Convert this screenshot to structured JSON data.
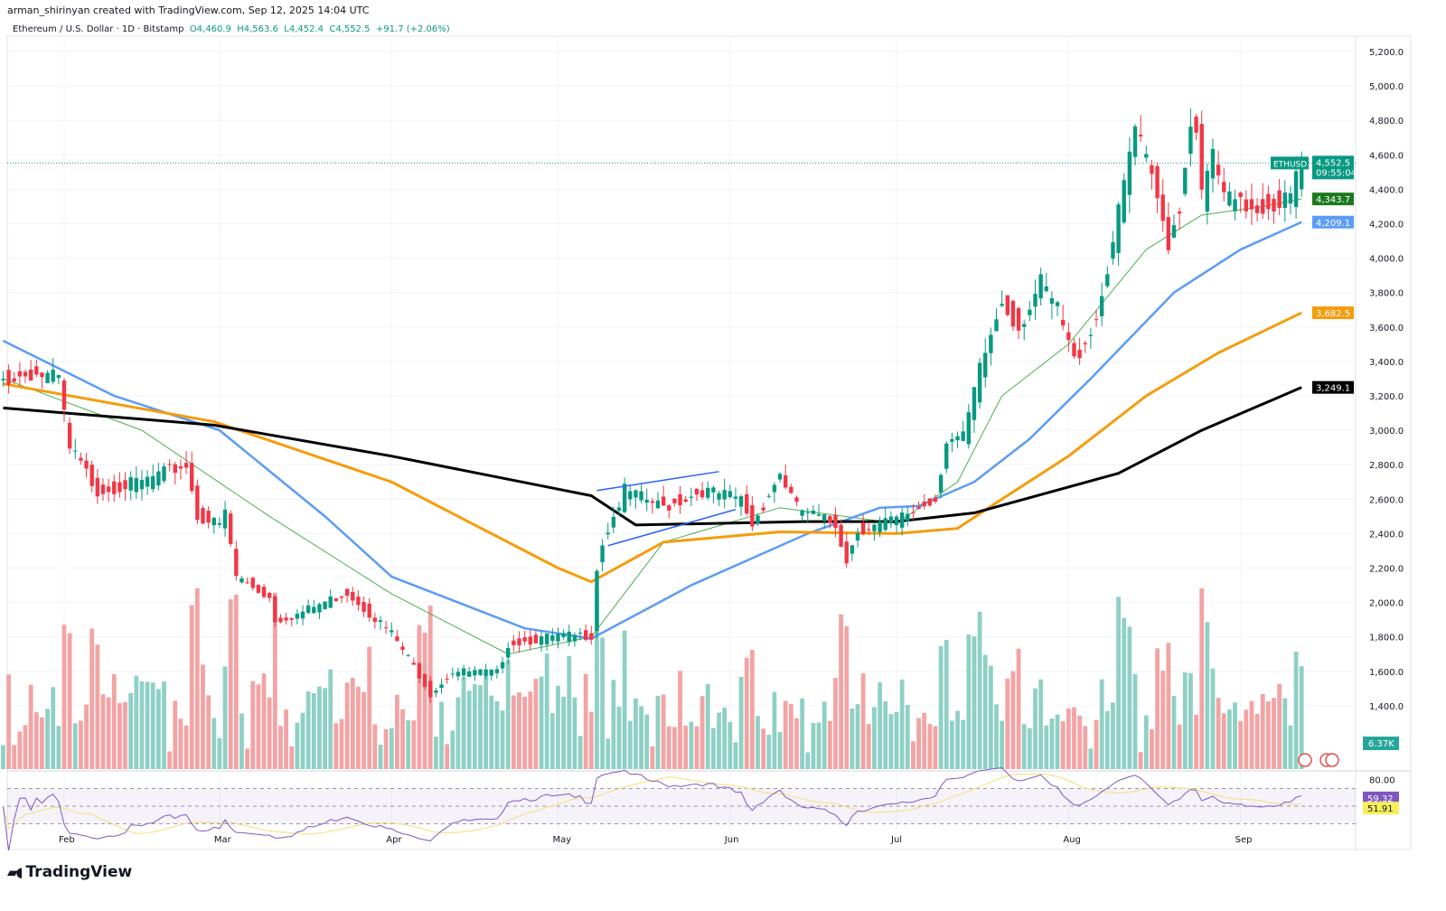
{
  "header": {
    "credit": "arman_shirinyan created with TradingView.com, Sep 12, 2025 14:04 UTC",
    "symbol_title": "Ethereum / U.S. Dollar · 1D · Bitstamp",
    "open": "O4,460.9",
    "high": "H4,563.6",
    "low": "L4,452.4",
    "close": "C4,552.5",
    "change": "+91.7 (+2.06%)"
  },
  "footer": {
    "logo": "TradingView"
  },
  "chart_data": {
    "type": "candlestick",
    "symbol": "ETHUSD",
    "interval": "1D",
    "ylim": [
      1300,
      5300
    ],
    "y_ticks": [
      "5,200.0",
      "5,000.0",
      "4,800.0",
      "4,600.0",
      "4,400.0",
      "4,200.0",
      "4,000.0",
      "3,800.0",
      "3,600.0",
      "3,400.0",
      "3,200.0",
      "3,000.0",
      "2,800.0",
      "2,600.0",
      "2,400.0",
      "2,200.0",
      "2,000.0",
      "1,800.0",
      "1,600.0",
      "1,400.0"
    ],
    "x_ticks": [
      {
        "label": "Feb",
        "date": "2025-02-01"
      },
      {
        "label": "Mar",
        "date": "2025-03-01"
      },
      {
        "label": "Apr",
        "date": "2025-04-01"
      },
      {
        "label": "May",
        "date": "2025-05-01"
      },
      {
        "label": "Jun",
        "date": "2025-06-01"
      },
      {
        "label": "Jul",
        "date": "2025-07-01"
      },
      {
        "label": "Aug",
        "date": "2025-08-01"
      },
      {
        "label": "Sep",
        "date": "2025-09-01"
      }
    ],
    "close_keypoints": [
      [
        "2025-01-21",
        3290
      ],
      [
        "2025-01-26",
        3330
      ],
      [
        "2025-01-31",
        3300
      ],
      [
        "2025-02-02",
        2880
      ],
      [
        "2025-02-03",
        2850
      ],
      [
        "2025-02-07",
        2650
      ],
      [
        "2025-02-15",
        2700
      ],
      [
        "2025-02-23",
        2800
      ],
      [
        "2025-02-25",
        2500
      ],
      [
        "2025-03-01",
        2450
      ],
      [
        "2025-03-02",
        2520
      ],
      [
        "2025-03-04",
        2150
      ],
      [
        "2025-03-10",
        2030
      ],
      [
        "2025-03-11",
        1900
      ],
      [
        "2025-03-15",
        1930
      ],
      [
        "2025-03-24",
        2060
      ],
      [
        "2025-04-01",
        1820
      ],
      [
        "2025-04-06",
        1580
      ],
      [
        "2025-04-08",
        1470
      ],
      [
        "2025-04-12",
        1600
      ],
      [
        "2025-04-20",
        1590
      ],
      [
        "2025-04-22",
        1760
      ],
      [
        "2025-04-30",
        1800
      ],
      [
        "2025-05-07",
        1810
      ],
      [
        "2025-05-08",
        2200
      ],
      [
        "2025-05-09",
        2350
      ],
      [
        "2025-05-13",
        2650
      ],
      [
        "2025-05-20",
        2550
      ],
      [
        "2025-05-27",
        2650
      ],
      [
        "2025-06-03",
        2600
      ],
      [
        "2025-06-05",
        2450
      ],
      [
        "2025-06-10",
        2750
      ],
      [
        "2025-06-13",
        2550
      ],
      [
        "2025-06-20",
        2450
      ],
      [
        "2025-06-22",
        2250
      ],
      [
        "2025-06-24",
        2420
      ],
      [
        "2025-07-01",
        2480
      ],
      [
        "2025-07-08",
        2600
      ],
      [
        "2025-07-10",
        2950
      ],
      [
        "2025-07-13",
        2950
      ],
      [
        "2025-07-16",
        3350
      ],
      [
        "2025-07-20",
        3750
      ],
      [
        "2025-07-23",
        3600
      ],
      [
        "2025-07-27",
        3850
      ],
      [
        "2025-07-30",
        3700
      ],
      [
        "2025-08-02",
        3400
      ],
      [
        "2025-08-06",
        3650
      ],
      [
        "2025-08-08",
        3950
      ],
      [
        "2025-08-10",
        4250
      ],
      [
        "2025-08-12",
        4600
      ],
      [
        "2025-08-13",
        4750
      ],
      [
        "2025-08-16",
        4450
      ],
      [
        "2025-08-19",
        4100
      ],
      [
        "2025-08-21",
        4300
      ],
      [
        "2025-08-23",
        4800
      ],
      [
        "2025-08-24",
        4780
      ],
      [
        "2025-08-25",
        4350
      ],
      [
        "2025-08-27",
        4600
      ],
      [
        "2025-08-29",
        4350
      ],
      [
        "2025-09-01",
        4300
      ],
      [
        "2025-09-05",
        4300
      ],
      [
        "2025-09-10",
        4350
      ],
      [
        "2025-09-11",
        4460
      ],
      [
        "2025-09-12",
        4552.5
      ]
    ],
    "moving_averages": [
      {
        "color": "#4caf50",
        "last": "4,343.7",
        "label_bg": "#1b7a1f",
        "width": 1,
        "points": [
          [
            "2025-01-21",
            3300
          ],
          [
            "2025-02-15",
            3000
          ],
          [
            "2025-03-10",
            2500
          ],
          [
            "2025-04-01",
            2050
          ],
          [
            "2025-04-22",
            1700
          ],
          [
            "2025-05-07",
            1800
          ],
          [
            "2025-05-20",
            2350
          ],
          [
            "2025-06-10",
            2550
          ],
          [
            "2025-07-01",
            2460
          ],
          [
            "2025-07-12",
            2700
          ],
          [
            "2025-07-20",
            3200
          ],
          [
            "2025-08-01",
            3500
          ],
          [
            "2025-08-15",
            4050
          ],
          [
            "2025-08-25",
            4250
          ],
          [
            "2025-09-05",
            4300
          ],
          [
            "2025-09-12",
            4343.7
          ]
        ]
      },
      {
        "color": "#5b9cf6",
        "last": "4,209.1",
        "label_bg": "#5b9cf6",
        "width": 2.5,
        "points": [
          [
            "2025-01-21",
            3520
          ],
          [
            "2025-02-10",
            3200
          ],
          [
            "2025-03-01",
            3000
          ],
          [
            "2025-03-20",
            2500
          ],
          [
            "2025-04-01",
            2150
          ],
          [
            "2025-04-25",
            1850
          ],
          [
            "2025-05-07",
            1790
          ],
          [
            "2025-05-25",
            2100
          ],
          [
            "2025-06-15",
            2400
          ],
          [
            "2025-06-28",
            2550
          ],
          [
            "2025-07-05",
            2560
          ],
          [
            "2025-07-15",
            2700
          ],
          [
            "2025-07-25",
            2950
          ],
          [
            "2025-08-05",
            3300
          ],
          [
            "2025-08-20",
            3800
          ],
          [
            "2025-09-01",
            4050
          ],
          [
            "2025-09-12",
            4209.1
          ]
        ]
      },
      {
        "color": "#f59c0b",
        "last": "3,682.5",
        "label_bg": "#f59c0b",
        "width": 3,
        "points": [
          [
            "2025-01-21",
            3270
          ],
          [
            "2025-02-28",
            3050
          ],
          [
            "2025-04-01",
            2700
          ],
          [
            "2025-05-01",
            2200
          ],
          [
            "2025-05-07",
            2120
          ],
          [
            "2025-05-20",
            2350
          ],
          [
            "2025-06-10",
            2410
          ],
          [
            "2025-07-01",
            2400
          ],
          [
            "2025-07-12",
            2430
          ],
          [
            "2025-07-20",
            2600
          ],
          [
            "2025-08-01",
            2850
          ],
          [
            "2025-08-15",
            3200
          ],
          [
            "2025-08-28",
            3450
          ],
          [
            "2025-09-12",
            3682.5
          ]
        ]
      },
      {
        "color": "#000000",
        "last": "3,249.1",
        "label_bg": "#000000",
        "width": 3,
        "points": [
          [
            "2025-01-21",
            3130
          ],
          [
            "2025-02-28",
            3030
          ],
          [
            "2025-04-01",
            2850
          ],
          [
            "2025-05-07",
            2620
          ],
          [
            "2025-05-15",
            2450
          ],
          [
            "2025-06-15",
            2470
          ],
          [
            "2025-07-01",
            2470
          ],
          [
            "2025-07-15",
            2520
          ],
          [
            "2025-08-10",
            2750
          ],
          [
            "2025-08-25",
            3000
          ],
          [
            "2025-09-12",
            3249.1
          ]
        ]
      }
    ],
    "trendlines": [
      {
        "color": "#2962ff",
        "from": [
          "2025-05-08",
          2650
        ],
        "to": [
          "2025-05-30",
          2760
        ]
      },
      {
        "color": "#2962ff",
        "from": [
          "2025-05-10",
          2330
        ],
        "to": [
          "2025-06-02",
          2540
        ]
      }
    ],
    "price_label": {
      "symbol": "ETHUSD",
      "value": "4,552.5",
      "countdown": "09:55:04",
      "color": "#089981"
    },
    "volume": {
      "last": "6.37K",
      "up_color": "#8fd0c5",
      "down_color": "#f3a3a3"
    },
    "rsi": {
      "value": "59.32",
      "ma_value": "51.91",
      "tick": "80.00",
      "line_color": "#7e57c2",
      "ma_color": "#f5e28a",
      "upper": 70,
      "lower": 30
    },
    "colors": {
      "up": "#089981",
      "down": "#f23645"
    }
  }
}
